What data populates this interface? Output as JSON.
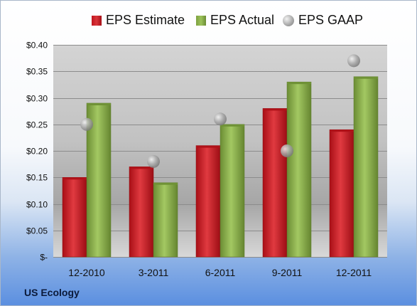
{
  "company": "US Ecology",
  "legend": {
    "estimate": "EPS Estimate",
    "actual": "EPS Actual",
    "gaap": "EPS GAAP"
  },
  "colors": {
    "estimate": "#c8181f",
    "actual": "#8db44e",
    "gaap": "#a6a6a6"
  },
  "chart_data": {
    "type": "bar",
    "categories": [
      "12-2010",
      "3-2011",
      "6-2011",
      "9-2011",
      "12-2011"
    ],
    "series": [
      {
        "name": "EPS Estimate",
        "type": "bar",
        "values": [
          0.15,
          0.17,
          0.21,
          0.28,
          0.24
        ]
      },
      {
        "name": "EPS Actual",
        "type": "bar",
        "values": [
          0.29,
          0.14,
          0.25,
          0.33,
          0.34
        ]
      },
      {
        "name": "EPS GAAP",
        "type": "scatter",
        "values": [
          0.25,
          0.18,
          0.26,
          0.2,
          0.37
        ]
      }
    ],
    "ylim": [
      0,
      0.4
    ],
    "yticks": [
      0,
      0.05,
      0.1,
      0.15,
      0.2,
      0.25,
      0.3,
      0.35,
      0.4
    ],
    "ytick_labels": [
      "$-",
      "$0.05",
      "$0.10",
      "$0.15",
      "$0.20",
      "$0.25",
      "$0.30",
      "$0.35",
      "$0.40"
    ],
    "grid": true,
    "legend_position": "top"
  }
}
